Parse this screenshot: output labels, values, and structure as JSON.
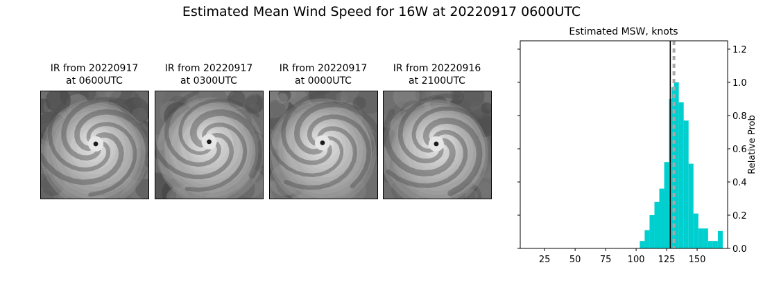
{
  "title": "Estimated Mean Wind Speed for 16W at 20220917 0600UTC",
  "panels": [
    {
      "line1": "IR from 20220917",
      "line2": "at 0600UTC",
      "eye": [
        0.51,
        0.49
      ]
    },
    {
      "line1": "IR from 20220917",
      "line2": "at 0300UTC",
      "eye": [
        0.5,
        0.47
      ]
    },
    {
      "line1": "IR from 20220917",
      "line2": "at 0000UTC",
      "eye": [
        0.49,
        0.48
      ]
    },
    {
      "line1": "IR from 20220916",
      "line2": "at 2100UTC",
      "eye": [
        0.49,
        0.49
      ]
    }
  ],
  "chart_data": {
    "type": "bar",
    "title": "Estimated MSW, knots",
    "xlabel": "",
    "ylabel": "Relative Prob",
    "xlim": [
      5,
      175
    ],
    "ylim": [
      0,
      1.25
    ],
    "xticks": [
      25,
      50,
      75,
      100,
      125,
      150
    ],
    "yticks": [
      0.0,
      0.2,
      0.4,
      0.6,
      0.8,
      1.0,
      1.2
    ],
    "bin_width": 4,
    "bins": [
      {
        "x0": 15,
        "value": 0.002
      },
      {
        "x0": 19,
        "value": 0.002
      },
      {
        "x0": 23,
        "value": 0.002
      },
      {
        "x0": 27,
        "value": 0.002
      },
      {
        "x0": 31,
        "value": 0.002
      },
      {
        "x0": 35,
        "value": 0.002
      },
      {
        "x0": 39,
        "value": 0.002
      },
      {
        "x0": 43,
        "value": 0.002
      },
      {
        "x0": 47,
        "value": 0.002
      },
      {
        "x0": 51,
        "value": 0.002
      },
      {
        "x0": 55,
        "value": 0.002
      },
      {
        "x0": 59,
        "value": 0.002
      },
      {
        "x0": 63,
        "value": 0.002
      },
      {
        "x0": 67,
        "value": 0.002
      },
      {
        "x0": 71,
        "value": 0.002
      },
      {
        "x0": 75,
        "value": 0.002
      },
      {
        "x0": 79,
        "value": 0.002
      },
      {
        "x0": 83,
        "value": 0.002
      },
      {
        "x0": 87,
        "value": 0.002
      },
      {
        "x0": 91,
        "value": 0.002
      },
      {
        "x0": 95,
        "value": 0.002
      },
      {
        "x0": 99,
        "value": 0.002
      },
      {
        "x0": 103,
        "value": 0.045
      },
      {
        "x0": 107,
        "value": 0.11
      },
      {
        "x0": 111,
        "value": 0.2
      },
      {
        "x0": 115,
        "value": 0.28
      },
      {
        "x0": 119,
        "value": 0.36
      },
      {
        "x0": 123,
        "value": 0.52
      },
      {
        "x0": 127,
        "value": 0.9
      },
      {
        "x0": 129,
        "value": 0.97
      },
      {
        "x0": 131,
        "value": 1.0
      },
      {
        "x0": 135,
        "value": 0.88
      },
      {
        "x0": 139,
        "value": 0.77
      },
      {
        "x0": 143,
        "value": 0.51
      },
      {
        "x0": 147,
        "value": 0.21
      },
      {
        "x0": 151,
        "value": 0.12
      },
      {
        "x0": 155,
        "value": 0.12
      },
      {
        "x0": 159,
        "value": 0.045
      },
      {
        "x0": 163,
        "value": 0.045
      },
      {
        "x0": 167,
        "value": 0.105
      }
    ],
    "vline_solid": 128,
    "vline_dashed": 131,
    "grid": false,
    "bar_color": "#00cfcf",
    "solid_line_color": "#000000",
    "dashed_line_color": "#a8a8a8"
  }
}
